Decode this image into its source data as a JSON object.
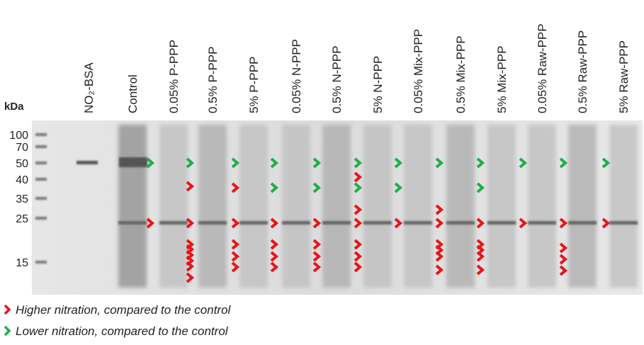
{
  "unit_label": "kDa",
  "markers": [
    "100",
    "70",
    "50",
    "40",
    "35",
    "25",
    "15"
  ],
  "lanes": [
    "NO₂-BSA",
    "Control",
    "0.05% P-PPP",
    "0.5% P-PPP",
    "5% P-PPP",
    "0.05% N-PPP",
    "0.5% N-PPP",
    "5% N-PPP",
    "0.05% Mix-PPP",
    "0.5% Mix-PPP",
    "5% Mix-PPP",
    "0.05% Raw-PPP",
    "0.5% Raw-PPP",
    "5% Raw-PPP"
  ],
  "legend": [
    "Higher nitration, compared to the control",
    "Lower nitration, compared to the control"
  ]
}
